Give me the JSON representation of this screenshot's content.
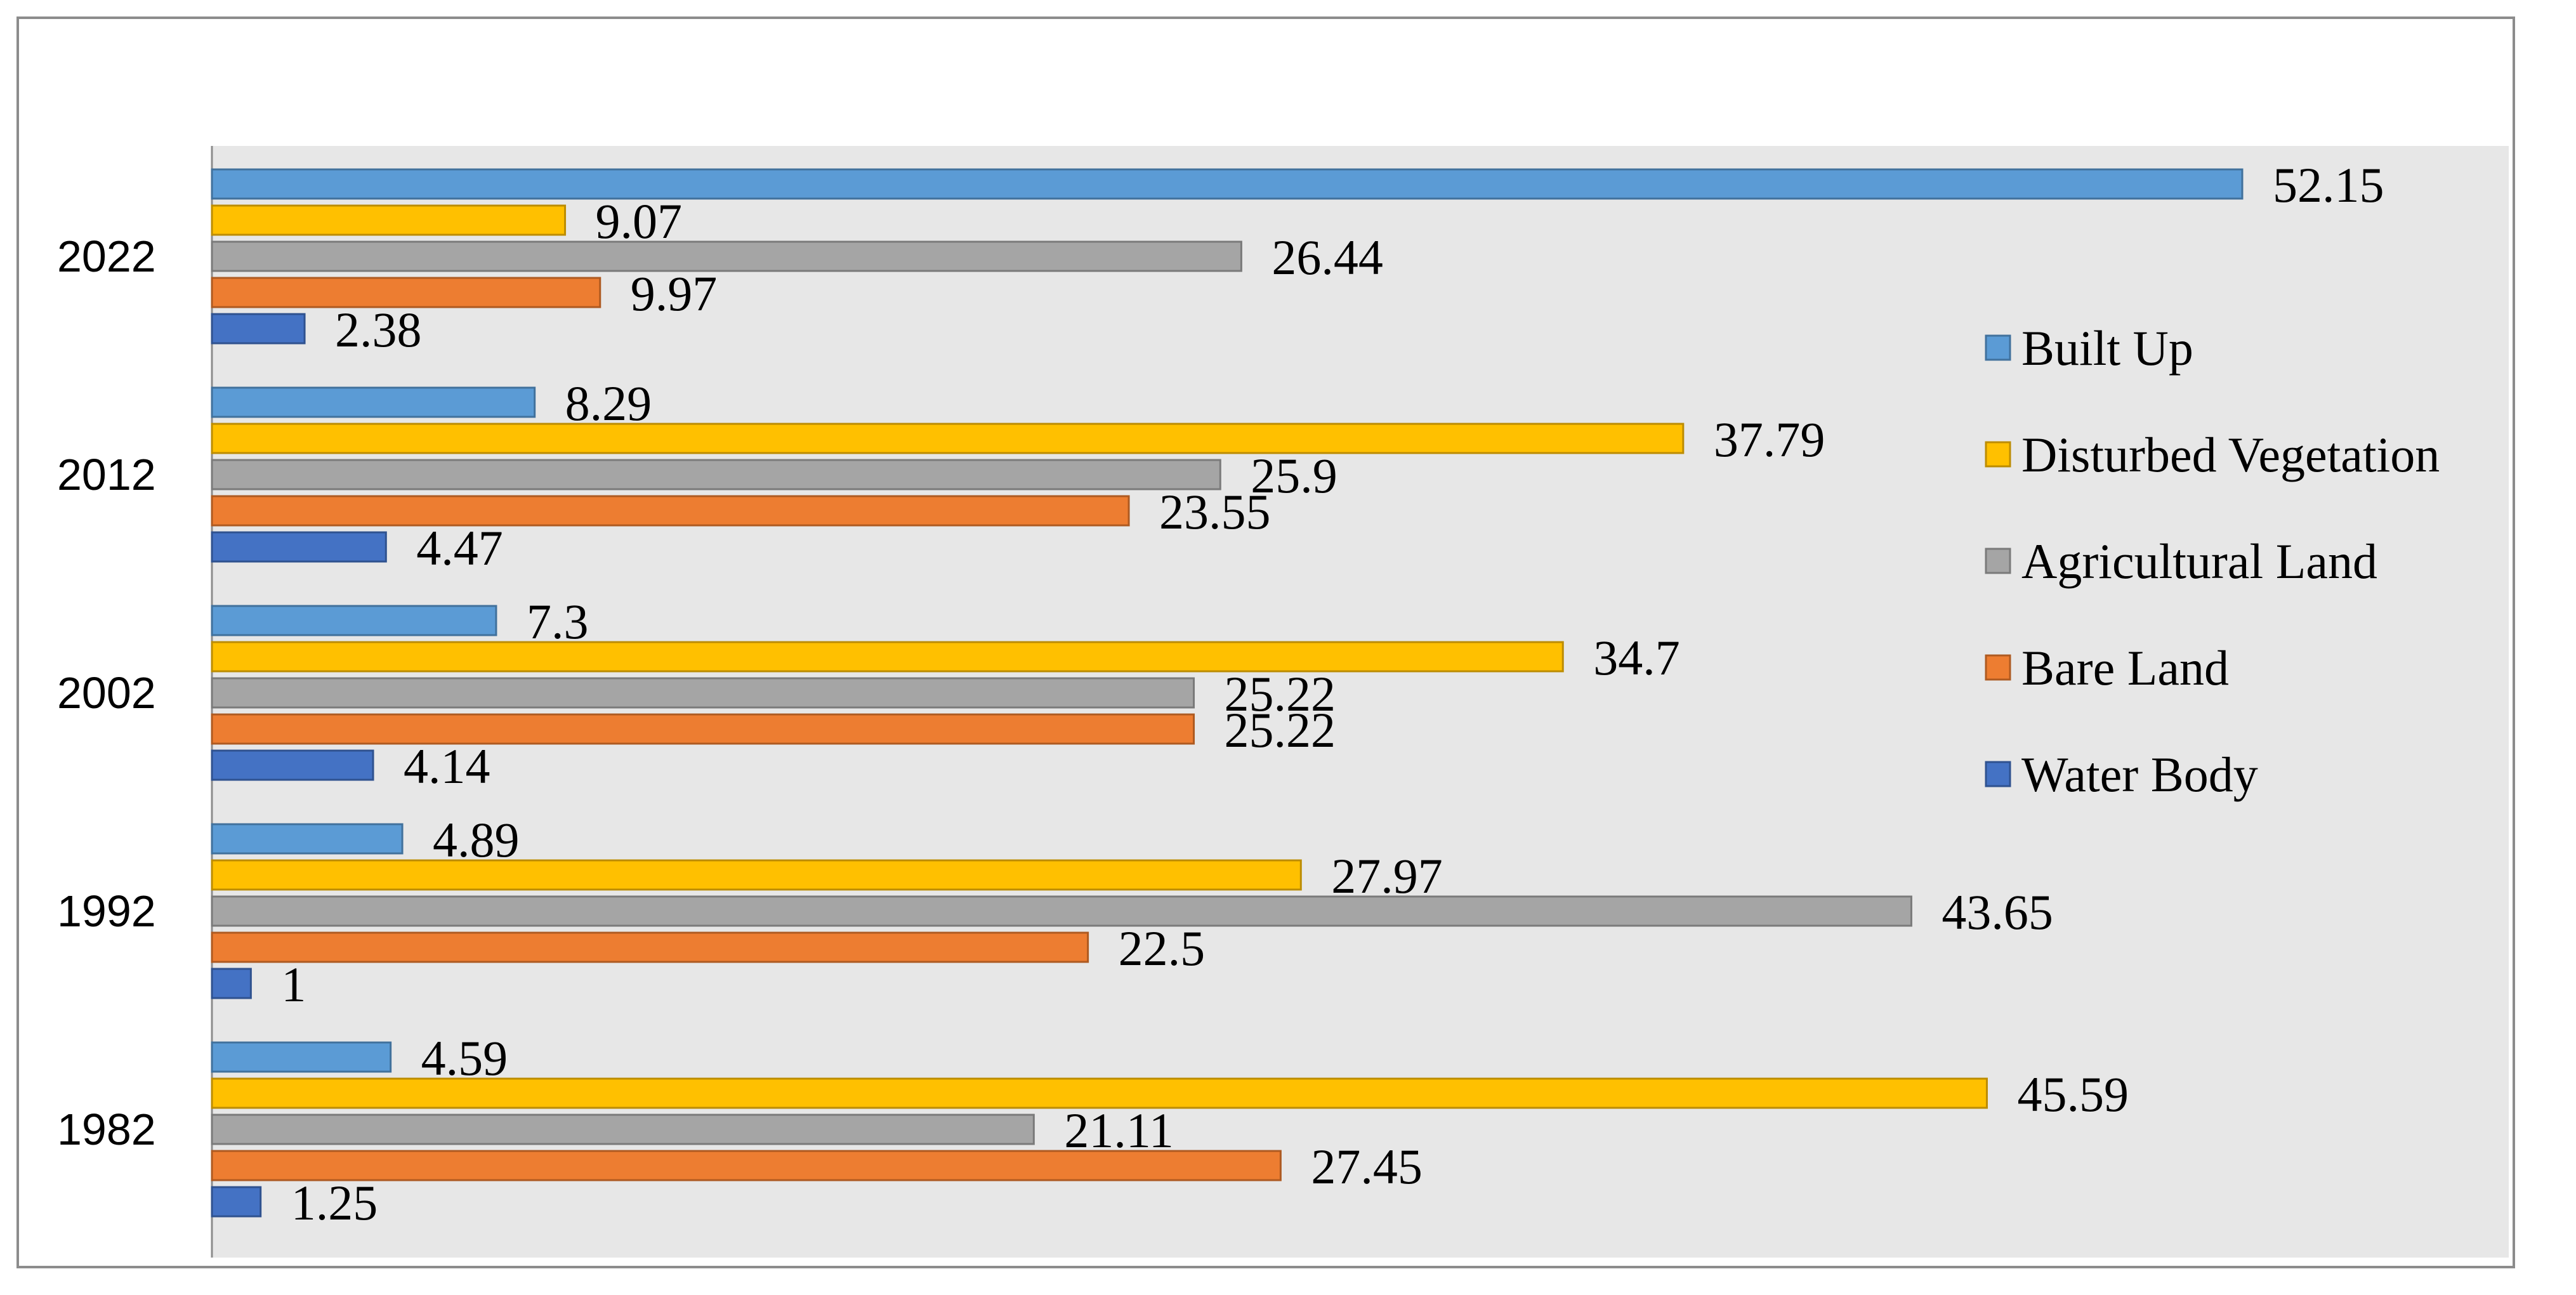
{
  "chart_data": {
    "type": "bar",
    "orientation": "horizontal",
    "categories": [
      "2022",
      "2012",
      "2002",
      "1992",
      "1982"
    ],
    "series": [
      {
        "name": "Built Up",
        "color": "#5b9bd5",
        "stroke": "#41719c",
        "values": [
          52.15,
          8.29,
          7.3,
          4.89,
          4.59
        ]
      },
      {
        "name": "Disturbed Vegetation",
        "color": "#ffc000",
        "stroke": "#bc8c00",
        "values": [
          9.07,
          37.79,
          34.7,
          27.97,
          45.59
        ]
      },
      {
        "name": "Agricultural Land",
        "color": "#a5a5a5",
        "stroke": "#7a7a7a",
        "values": [
          26.44,
          25.9,
          25.22,
          43.65,
          21.11
        ]
      },
      {
        "name": "Bare Land",
        "color": "#ed7d31",
        "stroke": "#ae5a21",
        "values": [
          9.97,
          23.55,
          25.22,
          22.5,
          27.45
        ]
      },
      {
        "name": "Water Body",
        "color": "#4472c4",
        "stroke": "#2f528f",
        "values": [
          2.38,
          4.47,
          4.14,
          1,
          1.25
        ]
      }
    ],
    "value_labels": [
      [
        "52.15",
        "9.07",
        "26.44",
        "9.97",
        "2.38"
      ],
      [
        "8.29",
        "37.79",
        "25.9",
        "23.55",
        "4.47"
      ],
      [
        "7.3",
        "34.7",
        "25.22",
        "25.22",
        "4.14"
      ],
      [
        "4.89",
        "27.97",
        "43.65",
        "22.5",
        "1"
      ],
      [
        "4.59",
        "45.59",
        "21.11",
        "27.45",
        "1.25"
      ]
    ],
    "xlim": [
      0,
      60
    ],
    "grid": false,
    "legend_position": "right",
    "plot_background": "#e7e7e7"
  }
}
